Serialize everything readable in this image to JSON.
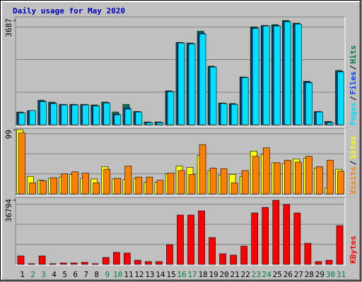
{
  "chart_data": {
    "type": "bar",
    "title": "Daily usage for May 2020",
    "categories": [
      "1",
      "2",
      "3",
      "4",
      "5",
      "6",
      "7",
      "8",
      "9",
      "10",
      "11",
      "12",
      "13",
      "14",
      "15",
      "16",
      "17",
      "18",
      "19",
      "20",
      "21",
      "22",
      "23",
      "24",
      "25",
      "26",
      "27",
      "28",
      "29",
      "30",
      "31"
    ],
    "category_colors": [
      "#000000",
      "#008040",
      "#008040",
      "#000000",
      "#000000",
      "#000000",
      "#000000",
      "#000000",
      "#008040",
      "#008040",
      "#000000",
      "#000000",
      "#000000",
      "#000000",
      "#000000",
      "#008040",
      "#008040",
      "#000000",
      "#000000",
      "#000000",
      "#000000",
      "#000000",
      "#008040",
      "#008040",
      "#000000",
      "#000000",
      "#000000",
      "#000000",
      "#000000",
      "#008040",
      "#008040"
    ],
    "legend_separator": "/",
    "panels": [
      {
        "ylim": [
          0,
          3687
        ],
        "yticks": [
          3687
        ],
        "series": [
          {
            "name": "Hits",
            "color": "#008040",
            "values": [
              450,
              500,
              870,
              800,
              720,
              720,
              720,
              700,
              800,
              450,
              720,
              470,
              100,
              100,
              1200,
              2910,
              2890,
              3310,
              2070,
              770,
              750,
              1690,
              3460,
              3510,
              3540,
              3687,
              3590,
              1540,
              470,
              120,
              1920
            ]
          },
          {
            "name": "Files",
            "color": "#0040ff",
            "values": [
              430,
              500,
              840,
              770,
              710,
              710,
              710,
              680,
              780,
              380,
              600,
              460,
              85,
              85,
              1180,
              2900,
              2870,
              3240,
              2050,
              760,
              730,
              1680,
              3430,
              3500,
              3510,
              3660,
              3570,
              1510,
              460,
              90,
              1890
            ]
          },
          {
            "name": "Pages",
            "color": "#00e0ff",
            "values": [
              420,
              500,
              820,
              750,
              700,
              700,
              700,
              670,
              770,
              350,
              550,
              450,
              75,
              75,
              1170,
              2890,
              2860,
              3210,
              2040,
              750,
              720,
              1670,
              3410,
              3490,
              3490,
              3640,
              3560,
              1490,
              450,
              75,
              1870
            ]
          }
        ]
      },
      {
        "ylim": [
          0,
          99
        ],
        "yticks": [
          99
        ],
        "series": [
          {
            "name": "Sites",
            "color": "#ffff00",
            "values": [
              99,
              27,
              21,
              24,
              26,
              30,
              24,
              23,
              42,
              23,
              22,
              24,
              18,
              18,
              31,
              43,
              41,
              59,
              36,
              29,
              30,
              27,
              66,
              61,
              48,
              47,
              54,
              55,
              40,
              9,
              38
            ]
          },
          {
            "name": "Visits",
            "color": "#ff8000",
            "values": [
              94,
              17,
              20,
              25,
              31,
              34,
              32,
              17,
              38,
              24,
              43,
              26,
              26,
              21,
              32,
              36,
              30,
              76,
              40,
              39,
              17,
              36,
              58,
              71,
              48,
              52,
              49,
              58,
              42,
              52,
              35
            ]
          }
        ]
      },
      {
        "ylim": [
          0,
          36794
        ],
        "yticks": [
          36794
        ],
        "series": [
          {
            "name": "KBytes",
            "color": "#ff0000",
            "values": [
              4850,
              400,
              4850,
              400,
              800,
              800,
              1200,
              400,
              4000,
              6900,
              6500,
              2400,
              1600,
              1600,
              11300,
              28300,
              28300,
              30700,
              15400,
              6100,
              5300,
              10500,
              29500,
              32700,
              36794,
              34400,
              29500,
              12100,
              1600,
              2400,
              22200
            ]
          }
        ]
      }
    ]
  }
}
